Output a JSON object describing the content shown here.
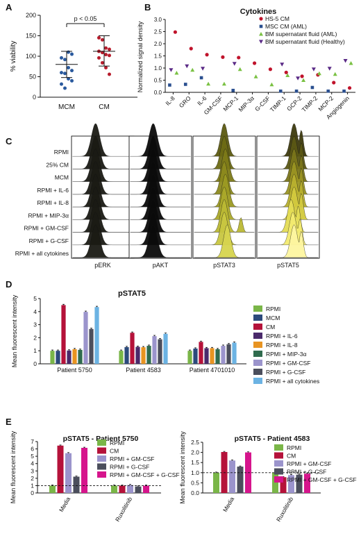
{
  "panels": {
    "A": "A",
    "B": "B",
    "C": "C",
    "D": "D",
    "E": "E"
  },
  "chart_data": [
    {
      "id": "A",
      "type": "scatter",
      "ylabel": "% viability",
      "yticks": [
        "0",
        "50",
        "100",
        "150",
        "200"
      ],
      "ylim": [
        0,
        200
      ],
      "categories": [
        "MCM",
        "CM"
      ],
      "annotation": "p < 0.05",
      "groups": [
        {
          "name": "MCM",
          "color": "#2a5a9e",
          "points": [
            96,
            92,
            72,
            65,
            60,
            58,
            45,
            40,
            32,
            22,
            110,
            105
          ],
          "mean": 80,
          "sd": [
            48,
            112
          ]
        },
        {
          "name": "CM",
          "color": "#b71c2c",
          "points": [
            145,
            140,
            120,
            117,
            112,
            109,
            104,
            102,
            96,
            84,
            72,
            56
          ],
          "mean": 112,
          "sd": [
            76,
            150
          ]
        }
      ]
    },
    {
      "id": "B",
      "type": "scatter",
      "title": "Cytokines",
      "ylabel": "Normalized signal density",
      "yticks": [
        "0.0",
        "0.5",
        "1.0",
        "1.5",
        "2.0",
        "2.5",
        "3.0"
      ],
      "ylim": [
        0,
        3
      ],
      "categories": [
        "IL-8",
        "GRO",
        "IL-6",
        "GM-CSF",
        "MCP-1",
        "MIP-3α",
        "G-CSF",
        "TIMP-1",
        "GCP-2",
        "TIMP-2",
        "MCP-2",
        "Angiogenin"
      ],
      "series": [
        {
          "name": "HS-5 CM",
          "color": "#c0132b",
          "shape": "circle",
          "values": [
            2.48,
            1.8,
            1.55,
            1.45,
            1.43,
            1.2,
            0.95,
            0.82,
            0.66,
            0.72,
            0.4,
            0.18
          ]
        },
        {
          "name": "MSC CM (AML)",
          "color": "#2a4f8f",
          "shape": "square",
          "values": [
            0.3,
            0.33,
            0.6,
            null,
            0.08,
            null,
            null,
            0.05,
            0.05,
            0.2,
            0.05,
            0.05
          ]
        },
        {
          "name": "BM supernatant fluid (AML)",
          "color": "#7ac143",
          "shape": "triangle-up",
          "values": [
            0.8,
            0.92,
            0.35,
            0.35,
            0.95,
            0.65,
            0.32,
            0.7,
            0.5,
            0.78,
            0.75,
            1.2
          ]
        },
        {
          "name": "BM supernatant fluid (Healthy)",
          "color": "#5a2a86",
          "shape": "triangle-down",
          "values": [
            0.92,
            1.08,
            0.98,
            null,
            1.18,
            null,
            null,
            1.15,
            0.58,
            0.95,
            0.98,
            1.3
          ]
        }
      ]
    },
    {
      "id": "C",
      "type": "histogram",
      "row_labels": [
        "RPMI",
        "25% CM",
        "MCM",
        "RPMI + IL-6",
        "RPMI + IL-8",
        "RPMI + MIP-3α",
        "RPMI + GM-CSF",
        "RPMI + G-CSF",
        "RPMI + all cytokines"
      ],
      "column_labels": [
        "pERK",
        "pAKT",
        "pSTAT3",
        "pSTAT5"
      ]
    },
    {
      "id": "D",
      "type": "bar",
      "title": "pSTAT5",
      "ylabel": "Mean fluorescent intensity",
      "yticks": [
        "0",
        "1",
        "2",
        "3",
        "4",
        "5"
      ],
      "ylim": [
        0,
        5
      ],
      "categories": [
        "Patient 5750",
        "Patient 4583",
        "Patient 4701010"
      ],
      "series": [
        {
          "name": "RPMI",
          "color": "#7ab648",
          "values": [
            1.0,
            1.0,
            1.0
          ]
        },
        {
          "name": "MCM",
          "color": "#2c4a7c",
          "values": [
            1.0,
            1.28,
            1.17
          ]
        },
        {
          "name": "CM",
          "color": "#b5123a",
          "values": [
            4.5,
            2.38,
            1.68
          ]
        },
        {
          "name": "RPMI + IL-6",
          "color": "#4a2a6b",
          "values": [
            1.02,
            1.3,
            1.2
          ]
        },
        {
          "name": "RPMI + IL-8",
          "color": "#e89422",
          "values": [
            1.12,
            1.27,
            1.2
          ]
        },
        {
          "name": "RPMI + MIP-3α",
          "color": "#2f6b4e",
          "values": [
            1.07,
            1.38,
            1.12
          ]
        },
        {
          "name": "RPMI + GM-CSF",
          "color": "#9b94cc",
          "values": [
            3.98,
            2.12,
            1.38
          ]
        },
        {
          "name": "RPMI + G-CSF",
          "color": "#4b4e5c",
          "values": [
            2.67,
            1.88,
            1.5
          ]
        },
        {
          "name": "RPMI + all cytokines",
          "color": "#6cb3e3",
          "values": [
            4.35,
            2.3,
            1.62
          ]
        }
      ]
    },
    {
      "id": "E1",
      "type": "bar",
      "title": "pSTAT5 - Patient 5750",
      "ylabel": "Mean fluorescent intensity",
      "yticks": [
        "0",
        "1",
        "2",
        "3",
        "4",
        "5",
        "6",
        "7"
      ],
      "ylim": [
        0,
        7
      ],
      "categories": [
        "Media",
        "Ruxolitinib"
      ],
      "reference_line": 1,
      "series": [
        {
          "name": "RPMI",
          "color": "#7ab648",
          "values": [
            1.0,
            1.0
          ]
        },
        {
          "name": "CM",
          "color": "#b5123a",
          "values": [
            6.45,
            1.0
          ]
        },
        {
          "name": "RPMI + GM-CSF",
          "color": "#9b94cc",
          "values": [
            5.42,
            1.08
          ]
        },
        {
          "name": "RPMI + G-CSF",
          "color": "#4b4e5c",
          "values": [
            2.22,
            0.88
          ]
        },
        {
          "name": "RPMI + GM-CSF + G-CSF",
          "color": "#d6158c",
          "values": [
            6.15,
            1.0
          ]
        }
      ]
    },
    {
      "id": "E2",
      "type": "bar",
      "title": "pSTAT5 - Patient 4583",
      "ylabel": "Mean fluorescent intensity",
      "yticks": [
        "0.0",
        "0.5",
        "1.0",
        "1.5",
        "2.0",
        "2.5"
      ],
      "ylim": [
        0,
        2.5
      ],
      "categories": [
        "Media",
        "Ruxolitinib"
      ],
      "reference_line": 1,
      "series": [
        {
          "name": "RPMI",
          "color": "#7ab648",
          "values": [
            1.0,
            1.0
          ]
        },
        {
          "name": "CM",
          "color": "#b5123a",
          "values": [
            2.02,
            0.78
          ]
        },
        {
          "name": "RPMI + GM-CSF",
          "color": "#9b94cc",
          "values": [
            1.6,
            0.88
          ]
        },
        {
          "name": "RPMI + G-CSF",
          "color": "#4b4e5c",
          "values": [
            1.3,
            0.9
          ]
        },
        {
          "name": "RPMI + GM-CSF + G-CSF",
          "color": "#d6158c",
          "values": [
            2.0,
            0.95
          ]
        }
      ]
    }
  ]
}
